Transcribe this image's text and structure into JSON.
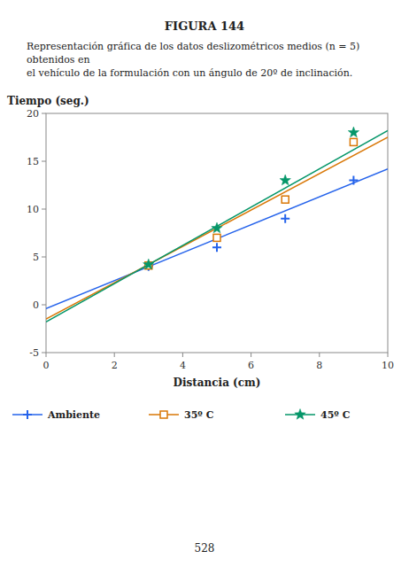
{
  "chart_data": {
    "type": "scatter",
    "title": "FIGURA 144",
    "subtitle": [
      "Representación gráfica de los datos deslizométricos medios (n = 5) obtenidos en",
      "el vehículo de la formulación con un ángulo de 20º de inclinación."
    ],
    "x_label": "Distancia (cm)",
    "y_label": "Tiempo (seg.)",
    "annotations": [
      "528"
    ],
    "xlim": [
      0,
      10
    ],
    "ylim": [
      -5,
      20
    ],
    "xticks": [
      0,
      2,
      4,
      6,
      8,
      10
    ],
    "yticks": [
      -5,
      0,
      5,
      10,
      15,
      20
    ],
    "series": [
      {
        "type": "line",
        "color": "#2563eb",
        "x": [
          0,
          10
        ],
        "values": [
          -0.4,
          14.2
        ]
      },
      {
        "name": "Ambiente",
        "type": "scatter",
        "marker": "plus",
        "color": "#2563eb",
        "x": [
          3,
          5,
          7,
          9
        ],
        "values": [
          4.0,
          6.0,
          9.0,
          13.0
        ]
      },
      {
        "type": "line",
        "color": "#d97706",
        "x": [
          0,
          10
        ],
        "values": [
          -1.5,
          17.5
        ]
      },
      {
        "name": "35º C",
        "type": "scatter",
        "marker": "square",
        "color": "#d97706",
        "x": [
          3,
          5,
          7,
          9
        ],
        "values": [
          4.1,
          7.0,
          11.0,
          17.0
        ]
      },
      {
        "type": "line",
        "color": "#059669",
        "x": [
          0,
          10
        ],
        "values": [
          -1.8,
          18.2
        ]
      },
      {
        "name": "45º C",
        "type": "scatter",
        "marker": "star",
        "color": "#059669",
        "x": [
          3,
          5,
          7,
          9
        ],
        "values": [
          4.2,
          8.0,
          13.0,
          18.0
        ]
      }
    ]
  }
}
